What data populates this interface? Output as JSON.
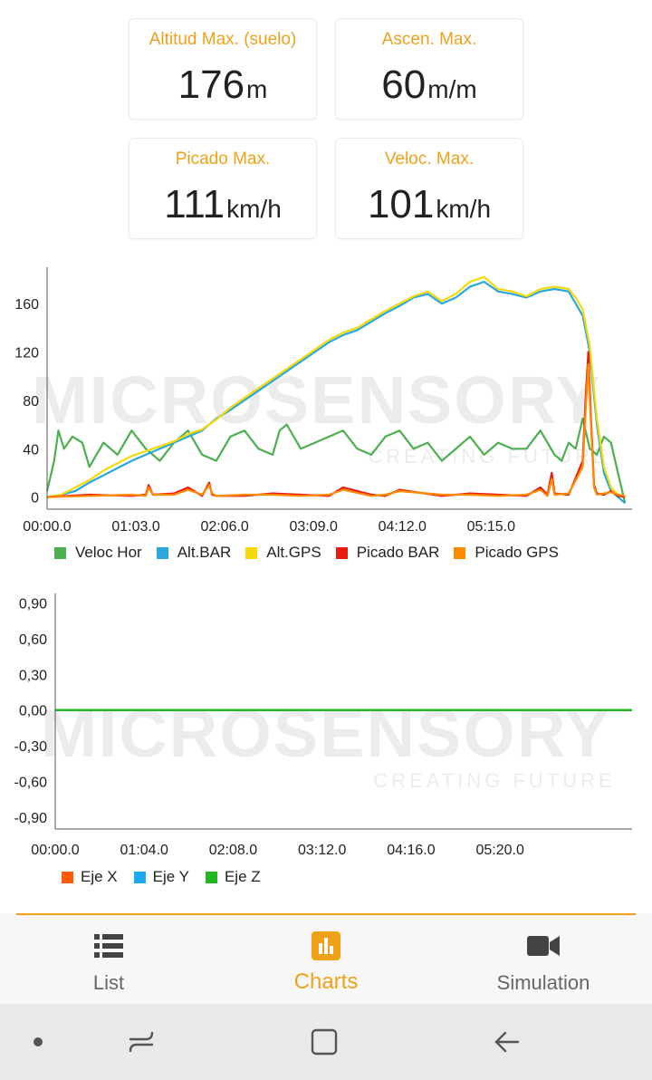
{
  "stats": [
    {
      "label": "Altitud Max. (suelo)",
      "value": "176",
      "unit": "m"
    },
    {
      "label": "Ascen. Max.",
      "value": "60",
      "unit": "m/m"
    },
    {
      "label": "Picado Max.",
      "value": "111",
      "unit": "km/h"
    },
    {
      "label": "Veloc. Max.",
      "value": "101",
      "unit": "km/h"
    }
  ],
  "watermark": {
    "brand": "MICROSENSORY",
    "tagline": "CREATING FUTURE"
  },
  "colors": {
    "accent": "#f0a11a",
    "veloc_hor": "#4caf50",
    "alt_bar": "#29a8e0",
    "alt_gps": "#f5d90a",
    "picado_bar": "#e81c0c",
    "picado_gps": "#ff8a00",
    "eje_x": "#ff5a0a",
    "eje_y": "#1ea8f0",
    "eje_z": "#22b722"
  },
  "chart_data": [
    {
      "type": "line",
      "x_ticks": [
        "00:00.0",
        "01:03.0",
        "02:06.0",
        "03:09.0",
        "04:12.0",
        "05:15.0"
      ],
      "y_ticks": [
        "0",
        "40",
        "80",
        "120",
        "160"
      ],
      "ylim": [
        -10,
        190
      ],
      "xlim_seconds": [
        0,
        415
      ],
      "legend_position": "bottom-left",
      "series": [
        {
          "name": "Veloc Hor",
          "t": [
            0,
            5,
            8,
            12,
            18,
            25,
            30,
            40,
            50,
            60,
            70,
            80,
            90,
            100,
            110,
            120,
            130,
            140,
            150,
            160,
            165,
            170,
            180,
            190,
            200,
            210,
            220,
            230,
            240,
            250,
            260,
            270,
            280,
            290,
            300,
            310,
            320,
            330,
            340,
            350,
            360,
            365,
            370,
            375,
            380,
            385,
            390,
            395,
            400,
            405,
            410
          ],
          "values": [
            5,
            30,
            55,
            40,
            50,
            45,
            25,
            45,
            35,
            55,
            40,
            30,
            45,
            55,
            35,
            30,
            50,
            55,
            40,
            35,
            55,
            60,
            40,
            45,
            50,
            55,
            40,
            35,
            50,
            55,
            40,
            45,
            30,
            40,
            50,
            35,
            45,
            40,
            40,
            55,
            35,
            30,
            45,
            40,
            65,
            40,
            35,
            50,
            45,
            20,
            -5
          ]
        },
        {
          "name": "Alt.BAR",
          "t": [
            0,
            10,
            20,
            30,
            40,
            50,
            60,
            70,
            80,
            90,
            100,
            110,
            120,
            130,
            140,
            150,
            160,
            170,
            180,
            190,
            200,
            210,
            220,
            230,
            240,
            250,
            260,
            270,
            280,
            290,
            300,
            310,
            320,
            330,
            340,
            350,
            360,
            370,
            375,
            380,
            385,
            390,
            395,
            400,
            405,
            410
          ],
          "values": [
            0,
            2,
            5,
            12,
            18,
            24,
            30,
            35,
            40,
            45,
            50,
            55,
            65,
            72,
            80,
            88,
            96,
            104,
            112,
            120,
            128,
            134,
            138,
            145,
            152,
            158,
            165,
            168,
            160,
            165,
            174,
            178,
            170,
            168,
            165,
            170,
            172,
            170,
            160,
            150,
            120,
            60,
            20,
            5,
            0,
            -5
          ]
        },
        {
          "name": "Alt.GPS",
          "t": [
            0,
            10,
            20,
            30,
            40,
            50,
            60,
            70,
            80,
            90,
            100,
            110,
            120,
            130,
            140,
            150,
            160,
            170,
            180,
            190,
            200,
            210,
            220,
            230,
            240,
            250,
            260,
            270,
            280,
            290,
            300,
            310,
            320,
            330,
            340,
            350,
            360,
            370,
            375,
            380,
            385,
            390,
            395,
            400,
            405,
            410
          ],
          "values": [
            0,
            2,
            8,
            14,
            22,
            28,
            34,
            38,
            42,
            46,
            52,
            56,
            64,
            74,
            82,
            90,
            98,
            106,
            114,
            122,
            130,
            136,
            140,
            147,
            154,
            160,
            166,
            170,
            162,
            168,
            178,
            182,
            172,
            170,
            166,
            172,
            174,
            172,
            165,
            155,
            125,
            65,
            25,
            8,
            2,
            0
          ]
        },
        {
          "name": "Picado BAR",
          "t": [
            0,
            30,
            60,
            70,
            72,
            75,
            90,
            100,
            110,
            115,
            117,
            120,
            140,
            160,
            180,
            200,
            210,
            230,
            240,
            250,
            280,
            300,
            320,
            340,
            350,
            355,
            358,
            360,
            370,
            380,
            382,
            384,
            386,
            388,
            390,
            395,
            400,
            405,
            410
          ],
          "values": [
            0,
            2,
            1,
            2,
            10,
            2,
            3,
            8,
            1,
            12,
            2,
            1,
            1,
            3,
            2,
            1,
            8,
            2,
            1,
            6,
            1,
            3,
            2,
            1,
            8,
            2,
            20,
            3,
            2,
            30,
            80,
            120,
            60,
            10,
            3,
            2,
            5,
            1,
            0
          ]
        },
        {
          "name": "Picado GPS",
          "t": [
            0,
            30,
            60,
            70,
            72,
            75,
            90,
            100,
            110,
            115,
            117,
            120,
            140,
            160,
            180,
            200,
            210,
            230,
            240,
            250,
            280,
            300,
            320,
            340,
            350,
            355,
            358,
            360,
            370,
            380,
            382,
            384,
            386,
            388,
            390,
            395,
            400,
            405,
            410
          ],
          "values": [
            0,
            1,
            2,
            1,
            8,
            2,
            2,
            6,
            2,
            10,
            3,
            1,
            2,
            2,
            1,
            2,
            6,
            1,
            2,
            5,
            2,
            2,
            1,
            2,
            6,
            1,
            15,
            2,
            3,
            25,
            70,
            110,
            55,
            8,
            2,
            3,
            4,
            2,
            1
          ]
        }
      ]
    },
    {
      "type": "line",
      "x_ticks": [
        "00:00.0",
        "01:04.0",
        "02:08.0",
        "03:12.0",
        "04:16.0",
        "05:20.0"
      ],
      "y_ticks": [
        "0,90",
        "0,60",
        "0,30",
        "0,00",
        "-0,30",
        "-0,60",
        "-0,90"
      ],
      "ylim": [
        -1.0,
        0.98
      ],
      "xlim_seconds": [
        0,
        415
      ],
      "legend_position": "bottom-left",
      "series": [
        {
          "name": "Eje X",
          "t": [
            0,
            415
          ],
          "values": [
            0,
            0
          ]
        },
        {
          "name": "Eje Y",
          "t": [
            0,
            415
          ],
          "values": [
            0,
            0
          ]
        },
        {
          "name": "Eje Z",
          "t": [
            0,
            415
          ],
          "values": [
            0,
            0
          ]
        }
      ]
    }
  ],
  "tabs": [
    {
      "label": "List",
      "icon": "list-icon"
    },
    {
      "label": "Charts",
      "icon": "bar-chart-icon"
    },
    {
      "label": "Simulation",
      "icon": "video-camera-icon"
    }
  ],
  "system_nav": [
    "dot-icon",
    "recent-apps-icon",
    "home-icon",
    "back-icon"
  ]
}
